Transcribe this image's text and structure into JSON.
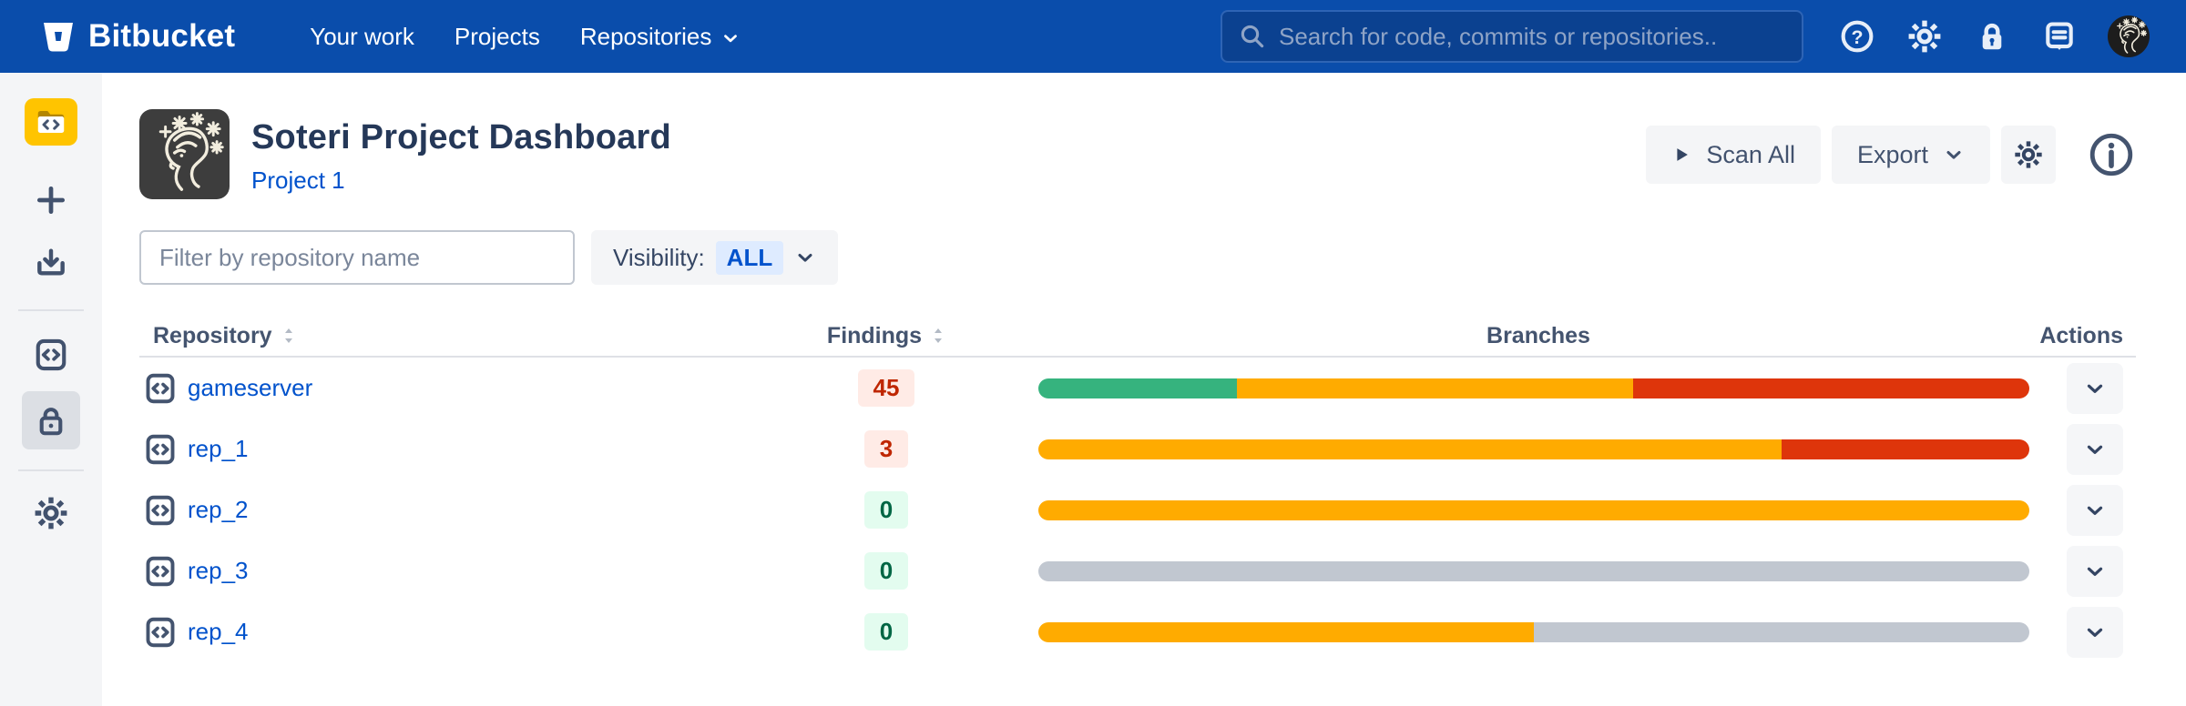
{
  "navbar": {
    "brand": "Bitbucket",
    "links": [
      {
        "label": "Your work"
      },
      {
        "label": "Projects"
      },
      {
        "label": "Repositories",
        "has_dropdown": true
      }
    ],
    "search_placeholder": "Search for code, commits or repositories..",
    "icon_names": [
      "help-icon",
      "settings-icon",
      "lock-icon",
      "feedback-icon",
      "user-avatar"
    ]
  },
  "sidebar": {
    "icon_names": [
      "project-avatar-folder",
      "create-icon",
      "import-icon",
      "code-repositories-icon",
      "security-lock-icon",
      "settings-gear-icon"
    ],
    "selected_item": "security-lock-icon"
  },
  "header": {
    "title": "Soteri Project Dashboard",
    "project_link": "Project 1",
    "scan_all_label": "Scan All",
    "export_label": "Export"
  },
  "filters": {
    "repo_filter_placeholder": "Filter by repository name",
    "visibility_label": "Visibility:",
    "visibility_value": "ALL"
  },
  "table": {
    "columns": [
      {
        "label": "Repository",
        "sortable": true
      },
      {
        "label": "Findings",
        "sortable": true
      },
      {
        "label": "Branches",
        "sortable": false
      },
      {
        "label": "Actions",
        "sortable": false
      }
    ],
    "rows": [
      {
        "name": "gameserver",
        "findings": "45",
        "findings_level": "red",
        "segments": [
          {
            "color": "green",
            "pct": 20
          },
          {
            "color": "amber",
            "pct": 40
          },
          {
            "color": "red",
            "pct": 40
          }
        ]
      },
      {
        "name": "rep_1",
        "findings": "3",
        "findings_level": "red",
        "segments": [
          {
            "color": "amber",
            "pct": 75
          },
          {
            "color": "red",
            "pct": 25
          }
        ]
      },
      {
        "name": "rep_2",
        "findings": "0",
        "findings_level": "green",
        "segments": [
          {
            "color": "amber",
            "pct": 100
          }
        ]
      },
      {
        "name": "rep_3",
        "findings": "0",
        "findings_level": "green",
        "segments": [
          {
            "color": "gray",
            "pct": 100
          }
        ]
      },
      {
        "name": "rep_4",
        "findings": "0",
        "findings_level": "green",
        "segments": [
          {
            "color": "amber",
            "pct": 50
          },
          {
            "color": "gray",
            "pct": 50
          }
        ]
      }
    ]
  },
  "colors": {
    "navbar_blue": "#0A4DAB",
    "link_blue": "#0052CC",
    "green": "#36B37E",
    "amber": "#FFAB00",
    "red": "#DE350B",
    "gray": "#C1C7D0",
    "badge_red_bg": "#FFEBE6",
    "badge_red_text": "#BF2600",
    "badge_green_bg": "#E3FCEF",
    "badge_green_text": "#006644",
    "sidebar_bg": "#F4F5F7",
    "avatar_yellow": "#FFC400"
  }
}
